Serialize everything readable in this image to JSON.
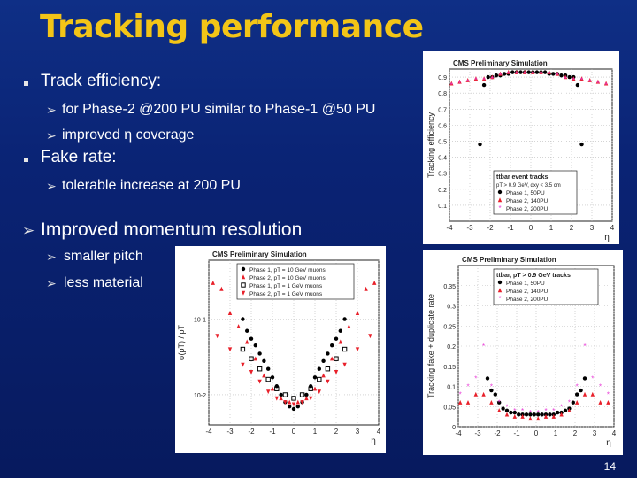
{
  "slide": {
    "title": "Tracking performance",
    "bullets": {
      "b1": "Track efficiency:",
      "b1a": "for Phase-2 @200 PU similar to Phase-1 @50 PU",
      "b1b": "improved η coverage",
      "b2": "Fake rate:",
      "b2a": "tolerable increase at 200 PU",
      "b3": "Improved momentum resolution",
      "b3a": "smaller pitch",
      "b3b": "less material"
    },
    "page_number": "14"
  },
  "chart_data": [
    {
      "id": "efficiency",
      "type": "scatter",
      "header": "CMS Preliminary Simulation",
      "ylabel": "Tracking efficiency",
      "xlabel": "η",
      "xlim": [
        -4,
        4
      ],
      "ylim": [
        0,
        0.95
      ],
      "xticks": [
        "-4",
        "-3",
        "-2",
        "-1",
        "0",
        "1",
        "2",
        "3",
        "4"
      ],
      "yticks": [
        "0.1",
        "0.2",
        "0.3",
        "0.4",
        "0.5",
        "0.6",
        "0.7",
        "0.8",
        "0.9"
      ],
      "legend_title": "ttbar event tracks",
      "legend_subtitle": "pT > 0.9 GeV, dxy < 3.5 cm",
      "legend_position": "bottom-right",
      "series": [
        {
          "name": "Phase 1, 50PU",
          "color": "#000000",
          "marker": "circle",
          "x": [
            -2.5,
            -2.3,
            -2.1,
            -1.9,
            -1.7,
            -1.5,
            -1.3,
            -1.1,
            -0.9,
            -0.7,
            -0.5,
            -0.3,
            -0.1,
            0.1,
            0.3,
            0.5,
            0.7,
            0.9,
            1.1,
            1.3,
            1.5,
            1.7,
            1.9,
            2.1,
            2.3,
            2.5
          ],
          "y": [
            0.48,
            0.85,
            0.9,
            0.9,
            0.91,
            0.91,
            0.92,
            0.92,
            0.93,
            0.93,
            0.93,
            0.93,
            0.93,
            0.93,
            0.93,
            0.93,
            0.93,
            0.92,
            0.92,
            0.92,
            0.91,
            0.91,
            0.9,
            0.9,
            0.85,
            0.48
          ]
        },
        {
          "name": "Phase 2, 140PU",
          "color": "#e8202a",
          "marker": "triangle",
          "x": [
            -3.9,
            -3.5,
            -3.1,
            -2.7,
            -2.3,
            -1.9,
            -1.5,
            -1.1,
            -0.7,
            -0.3,
            0.1,
            0.5,
            0.9,
            1.3,
            1.7,
            2.1,
            2.5,
            2.9,
            3.3,
            3.7
          ],
          "y": [
            0.86,
            0.87,
            0.88,
            0.89,
            0.89,
            0.9,
            0.92,
            0.93,
            0.93,
            0.93,
            0.93,
            0.93,
            0.93,
            0.92,
            0.9,
            0.89,
            0.89,
            0.88,
            0.87,
            0.86
          ]
        },
        {
          "name": "Phase 2, 200PU",
          "color": "#e83ad6",
          "marker": "star",
          "x": [
            -3.9,
            -3.5,
            -3.1,
            -2.7,
            -2.3,
            -1.9,
            -1.5,
            -1.1,
            -0.7,
            -0.3,
            0.1,
            0.5,
            0.9,
            1.3,
            1.7,
            2.1,
            2.5,
            2.9,
            3.3,
            3.7
          ],
          "y": [
            0.85,
            0.86,
            0.87,
            0.88,
            0.88,
            0.89,
            0.91,
            0.92,
            0.92,
            0.92,
            0.92,
            0.92,
            0.92,
            0.91,
            0.89,
            0.88,
            0.88,
            0.87,
            0.86,
            0.85
          ]
        }
      ]
    },
    {
      "id": "fakerate",
      "type": "scatter",
      "header": "CMS Preliminary Simulation",
      "ylabel": "Tracking fake + duplicate rate",
      "xlabel": "η",
      "xlim": [
        -4,
        4
      ],
      "ylim": [
        0,
        0.4
      ],
      "xticks": [
        "-4",
        "-3",
        "-2",
        "-1",
        "0",
        "1",
        "2",
        "3",
        "4"
      ],
      "yticks": [
        "0",
        "0.05",
        "0.1",
        "0.15",
        "0.2",
        "0.25",
        "0.3",
        "0.35"
      ],
      "legend_title": "ttbar, pT > 0.9 GeV tracks",
      "legend_position": "top-right",
      "series": [
        {
          "name": "Phase 1, 50PU",
          "color": "#000000",
          "marker": "circle",
          "x": [
            -2.5,
            -2.3,
            -2.1,
            -1.9,
            -1.7,
            -1.5,
            -1.3,
            -1.1,
            -0.9,
            -0.7,
            -0.5,
            -0.3,
            -0.1,
            0.1,
            0.3,
            0.5,
            0.7,
            0.9,
            1.1,
            1.3,
            1.5,
            1.7,
            1.9,
            2.1,
            2.3,
            2.5
          ],
          "y": [
            0.12,
            0.09,
            0.08,
            0.06,
            0.045,
            0.04,
            0.035,
            0.035,
            0.03,
            0.03,
            0.03,
            0.03,
            0.03,
            0.03,
            0.03,
            0.03,
            0.03,
            0.03,
            0.035,
            0.035,
            0.04,
            0.045,
            0.06,
            0.08,
            0.09,
            0.12
          ]
        },
        {
          "name": "Phase 2, 140PU",
          "color": "#e8202a",
          "marker": "triangle",
          "x": [
            -3.9,
            -3.5,
            -3.1,
            -2.7,
            -2.3,
            -1.9,
            -1.5,
            -1.1,
            -0.7,
            -0.3,
            0.1,
            0.5,
            0.9,
            1.3,
            1.7,
            2.1,
            2.5,
            2.9,
            3.3,
            3.7
          ],
          "y": [
            0.06,
            0.06,
            0.08,
            0.08,
            0.06,
            0.04,
            0.03,
            0.025,
            0.025,
            0.02,
            0.02,
            0.025,
            0.025,
            0.03,
            0.04,
            0.06,
            0.08,
            0.08,
            0.06,
            0.06
          ]
        },
        {
          "name": "Phase 2, 200PU",
          "color": "#e83ad6",
          "marker": "star",
          "x": [
            -3.9,
            -3.5,
            -3.1,
            -2.7,
            -2.3,
            -1.9,
            -1.5,
            -1.1,
            -0.7,
            -0.3,
            0.1,
            0.5,
            0.9,
            1.3,
            1.7,
            2.1,
            2.5,
            2.9,
            3.3,
            3.7
          ],
          "y": [
            0.08,
            0.1,
            0.12,
            0.2,
            0.1,
            0.06,
            0.05,
            0.04,
            0.04,
            0.035,
            0.035,
            0.04,
            0.04,
            0.05,
            0.06,
            0.1,
            0.2,
            0.12,
            0.1,
            0.08
          ]
        }
      ]
    },
    {
      "id": "resolution",
      "type": "scatter",
      "header": "CMS Preliminary Simulation",
      "ylabel": "σ(pT) / pT",
      "xlabel": "η",
      "xlim": [
        -4,
        4
      ],
      "ylim": [
        0.004,
        0.6
      ],
      "yscale": "log",
      "xticks": [
        "-4",
        "-3",
        "-2",
        "-1",
        "0",
        "1",
        "2",
        "3",
        "4"
      ],
      "yticks": [
        "10-2",
        "10-1"
      ],
      "legend_position": "top",
      "series": [
        {
          "name": "Phase 1, pT = 10 GeV muons",
          "color": "#000000",
          "marker": "circle",
          "x": [
            -2.4,
            -2.2,
            -2.0,
            -1.8,
            -1.6,
            -1.4,
            -1.2,
            -1.0,
            -0.8,
            -0.6,
            -0.4,
            -0.2,
            0.0,
            0.2,
            0.4,
            0.6,
            0.8,
            1.0,
            1.2,
            1.4,
            1.6,
            1.8,
            2.0,
            2.2,
            2.4
          ],
          "y": [
            0.1,
            0.07,
            0.055,
            0.045,
            0.035,
            0.028,
            0.022,
            0.017,
            0.013,
            0.01,
            0.008,
            0.007,
            0.0065,
            0.007,
            0.008,
            0.01,
            0.013,
            0.017,
            0.022,
            0.028,
            0.035,
            0.045,
            0.055,
            0.07,
            0.1
          ]
        },
        {
          "name": "Phase 2, pT = 10 GeV muons",
          "color": "#e8202a",
          "marker": "triangle",
          "x": [
            -3.8,
            -3.4,
            -3.0,
            -2.6,
            -2.2,
            -1.8,
            -1.4,
            -1.0,
            -0.6,
            -0.2,
            0.2,
            0.6,
            1.0,
            1.4,
            1.8,
            2.2,
            2.6,
            3.0,
            3.4,
            3.8
          ],
          "y": [
            0.3,
            0.25,
            0.12,
            0.08,
            0.05,
            0.03,
            0.018,
            0.012,
            0.009,
            0.008,
            0.008,
            0.009,
            0.012,
            0.018,
            0.03,
            0.05,
            0.08,
            0.12,
            0.25,
            0.3
          ]
        },
        {
          "name": "Phase 1, pT = 1 GeV muons",
          "color": "#000000",
          "marker": "square",
          "x": [
            -2.4,
            -2.0,
            -1.6,
            -1.2,
            -0.8,
            -0.4,
            0.0,
            0.4,
            0.8,
            1.2,
            1.6,
            2.0,
            2.4
          ],
          "y": [
            0.04,
            0.03,
            0.022,
            0.016,
            0.012,
            0.01,
            0.009,
            0.01,
            0.012,
            0.016,
            0.022,
            0.03,
            0.04
          ]
        },
        {
          "name": "Phase 2, pT = 1 GeV muons",
          "color": "#e8202a",
          "marker": "triangle-down",
          "x": [
            -3.6,
            -3.0,
            -2.4,
            -2.0,
            -1.6,
            -1.2,
            -0.8,
            -0.4,
            0.0,
            0.4,
            0.8,
            1.2,
            1.6,
            2.0,
            2.4,
            3.0,
            3.6
          ],
          "y": [
            0.06,
            0.04,
            0.025,
            0.02,
            0.015,
            0.011,
            0.009,
            0.008,
            0.0075,
            0.008,
            0.009,
            0.011,
            0.015,
            0.02,
            0.025,
            0.04,
            0.06
          ]
        }
      ]
    }
  ]
}
